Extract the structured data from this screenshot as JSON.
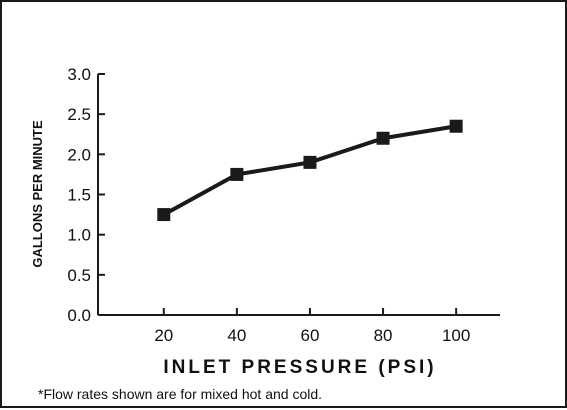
{
  "chart_data": {
    "type": "line",
    "title": "",
    "xlabel": "INLET PRESSURE (PSI)",
    "ylabel": "GALLONS PER MINUTE",
    "x": [
      20,
      40,
      60,
      80,
      100
    ],
    "series": [
      {
        "values": [
          1.25,
          1.75,
          1.9,
          2.2,
          2.35
        ]
      }
    ],
    "xticks": [
      20,
      40,
      60,
      80,
      100
    ],
    "yticks": [
      "0.0",
      "0.5",
      "1.0",
      "1.5",
      "2.0",
      "2.5",
      "3.0"
    ],
    "xlim": [
      2,
      112
    ],
    "ylim": [
      0,
      3.0
    ],
    "grid": false,
    "marker": "square",
    "colors": {
      "line": "#1a1a1a",
      "marker": "#1a1a1a",
      "frame": "#1a1a1a"
    },
    "footnote": "*Flow rates shown are for mixed hot and cold."
  }
}
